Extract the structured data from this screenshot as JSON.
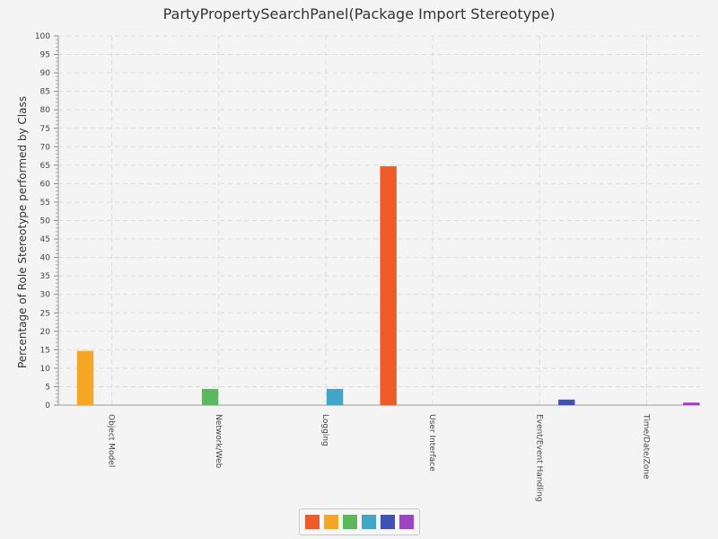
{
  "chart_data": {
    "type": "bar",
    "title": "PartyPropertySearchPanel(Package Import Stereotype)",
    "xlabel": "",
    "ylabel": "Percentage of Role Stereotype performed by Class",
    "ylim": [
      0,
      100
    ],
    "y_ticks": [
      0,
      5,
      10,
      15,
      20,
      25,
      30,
      35,
      40,
      45,
      50,
      55,
      60,
      65,
      70,
      75,
      80,
      85,
      90,
      95,
      100
    ],
    "grid": true,
    "legend_position": "bottom",
    "categories": [
      "Object Model",
      "Network/Web",
      "Logging",
      "User Interface",
      "Event/Event Handling",
      "Time/Date/Zone"
    ],
    "series": [
      {
        "color": "#f05a28",
        "values": [
          0,
          0,
          0,
          64.7,
          0,
          0
        ]
      },
      {
        "color": "#f5a623",
        "values": [
          14.7,
          0,
          0,
          0,
          0,
          0
        ]
      },
      {
        "color": "#5cb85c",
        "values": [
          0,
          4.4,
          0,
          0,
          0,
          0
        ]
      },
      {
        "color": "#41a6c8",
        "values": [
          0,
          0,
          4.4,
          0,
          0,
          0
        ]
      },
      {
        "color": "#3f51b5",
        "values": [
          0,
          0,
          0,
          0,
          1.5,
          0
        ]
      },
      {
        "color": "#9b44c6",
        "values": [
          0,
          0,
          0,
          0,
          0,
          0.7
        ]
      }
    ]
  }
}
